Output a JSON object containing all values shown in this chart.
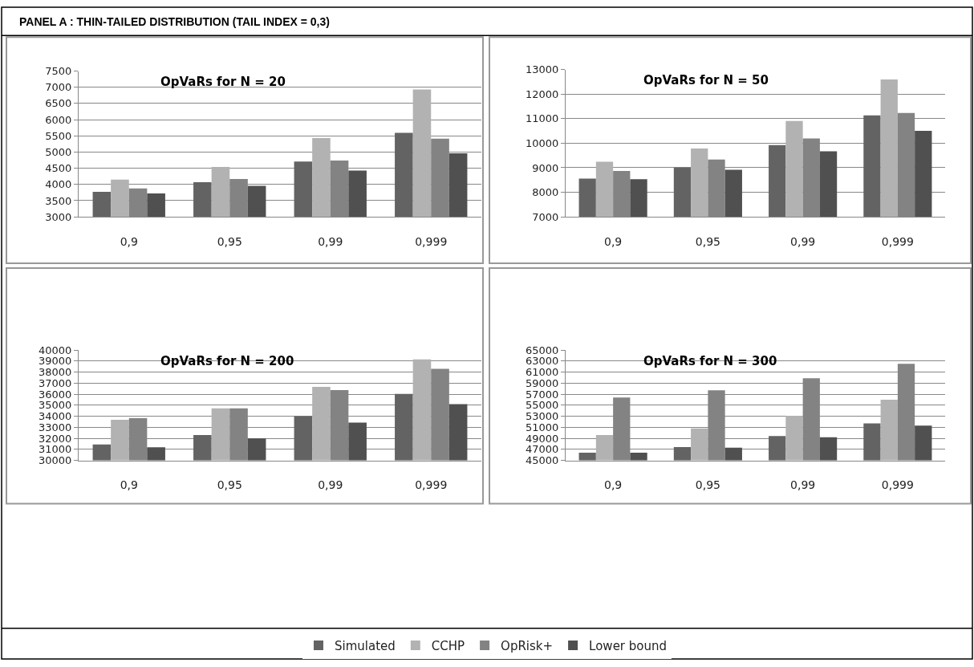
{
  "chart_data": [
    {
      "type": "bar",
      "title": "OpVaRs for N = 20",
      "annotations": [
        "PANEL A : THIN-TAILED DISTRIBUTION (TAIL INDEX = 0,3)"
      ],
      "categories": [
        "0,9",
        "0,95",
        "0,99",
        "0,999"
      ],
      "ylim": [
        3000,
        7500
      ],
      "yticks": [
        3000,
        3500,
        4000,
        4500,
        5000,
        5500,
        6000,
        6500,
        7000,
        7500
      ],
      "grid": "y",
      "legend": "bottom",
      "series": [
        {
          "name": "Simulated",
          "color": "#636363",
          "values": [
            3770,
            4070,
            4710,
            5590
          ]
        },
        {
          "name": "CCHP",
          "color": "#b2b2b2",
          "values": [
            4150,
            4540,
            5430,
            6930
          ]
        },
        {
          "name": "OpRisk+",
          "color": "#838383",
          "values": [
            3880,
            4170,
            4740,
            5410
          ]
        },
        {
          "name": "Lower bound",
          "color": "#505050",
          "values": [
            3720,
            3960,
            4430,
            4960
          ]
        }
      ]
    },
    {
      "type": "bar",
      "title": "OpVaRs for N = 50",
      "categories": [
        "0,9",
        "0,95",
        "0,99",
        "0,999"
      ],
      "ylim": [
        7000,
        13000
      ],
      "yticks": [
        7000,
        8000,
        9000,
        10000,
        11000,
        12000,
        13000
      ],
      "grid": "y",
      "series": [
        {
          "color": "#636363",
          "values": [
            8560,
            9010,
            9920,
            11130
          ]
        },
        {
          "color": "#b2b2b2",
          "values": [
            9240,
            9780,
            10900,
            12590
          ]
        },
        {
          "color": "#838383",
          "values": [
            8870,
            9330,
            10190,
            11230
          ]
        },
        {
          "color": "#505050",
          "values": [
            8530,
            8920,
            9670,
            10500
          ]
        }
      ]
    },
    {
      "type": "bar",
      "title": "OpVaRs for N = 200",
      "categories": [
        "0,9",
        "0,95",
        "0,99",
        "0,999"
      ],
      "ylim": [
        30000,
        40000
      ],
      "yticks": [
        30000,
        31000,
        32000,
        33000,
        34000,
        35000,
        36000,
        37000,
        38000,
        39000,
        40000
      ],
      "grid": "y",
      "series": [
        {
          "color": "#636363",
          "values": [
            31450,
            32300,
            34000,
            36030
          ]
        },
        {
          "color": "#b2b2b2",
          "values": [
            33680,
            34720,
            36660,
            39150
          ]
        },
        {
          "color": "#838383",
          "values": [
            33820,
            34720,
            36380,
            38290
          ]
        },
        {
          "color": "#505050",
          "values": [
            31180,
            31980,
            33430,
            35100
          ]
        }
      ]
    },
    {
      "type": "bar",
      "title": "OpVaRs for N = 300",
      "categories": [
        "0,9",
        "0,95",
        "0,99",
        "0,999"
      ],
      "ylim": [
        45000,
        65000
      ],
      "yticks": [
        45000,
        47000,
        49000,
        51000,
        53000,
        55000,
        57000,
        59000,
        61000,
        63000,
        65000
      ],
      "grid": "y",
      "series": [
        {
          "color": "#636363",
          "values": [
            46400,
            47400,
            49400,
            51700
          ]
        },
        {
          "color": "#b2b2b2",
          "values": [
            49600,
            50800,
            53100,
            56000
          ]
        },
        {
          "color": "#838383",
          "values": [
            56400,
            57700,
            59900,
            62500
          ]
        },
        {
          "color": "#505050",
          "values": [
            46400,
            47300,
            49200,
            51300
          ]
        }
      ]
    }
  ]
}
